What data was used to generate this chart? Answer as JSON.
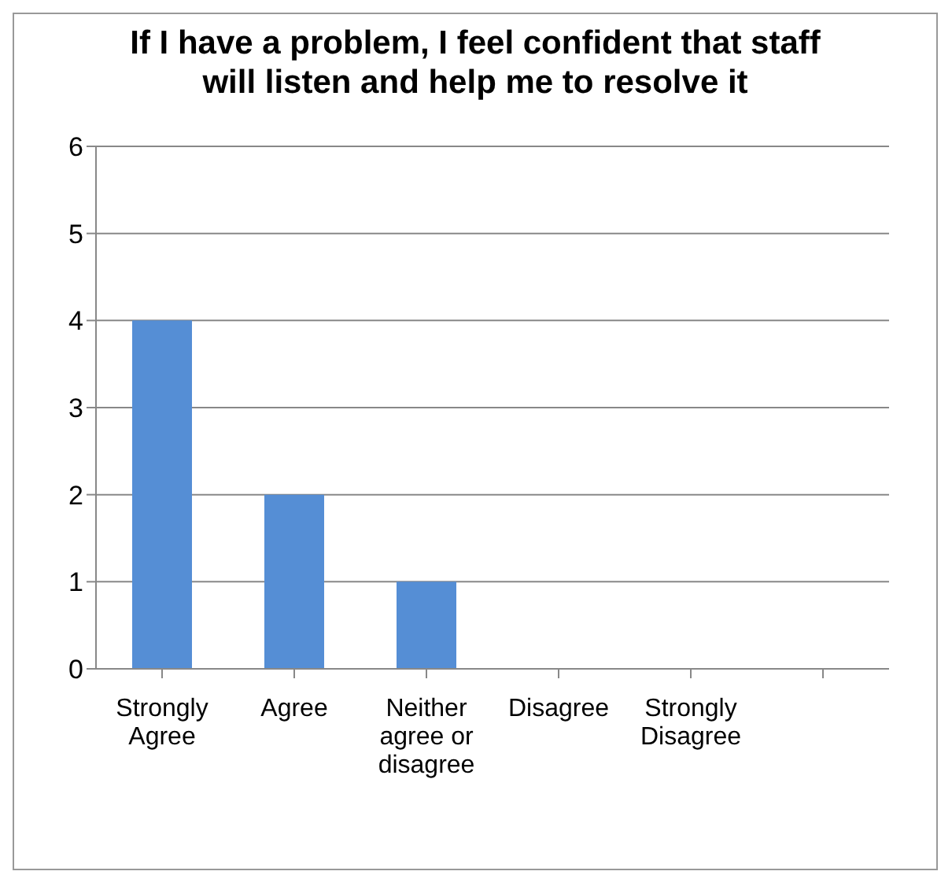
{
  "chart_data": {
    "type": "bar",
    "title": "If I have a problem, I feel confident that staff will listen and help me to resolve it",
    "categories": [
      "Strongly Agree",
      "Agree",
      "Neither agree or disagree",
      "Disagree",
      "Strongly Disagree",
      null
    ],
    "values": [
      4,
      2,
      1,
      0,
      0,
      null
    ],
    "color": "#558ed5",
    "ylim": [
      0,
      6
    ],
    "yticks": [
      0,
      1,
      2,
      3,
      4,
      5,
      6
    ],
    "grid": "y"
  }
}
